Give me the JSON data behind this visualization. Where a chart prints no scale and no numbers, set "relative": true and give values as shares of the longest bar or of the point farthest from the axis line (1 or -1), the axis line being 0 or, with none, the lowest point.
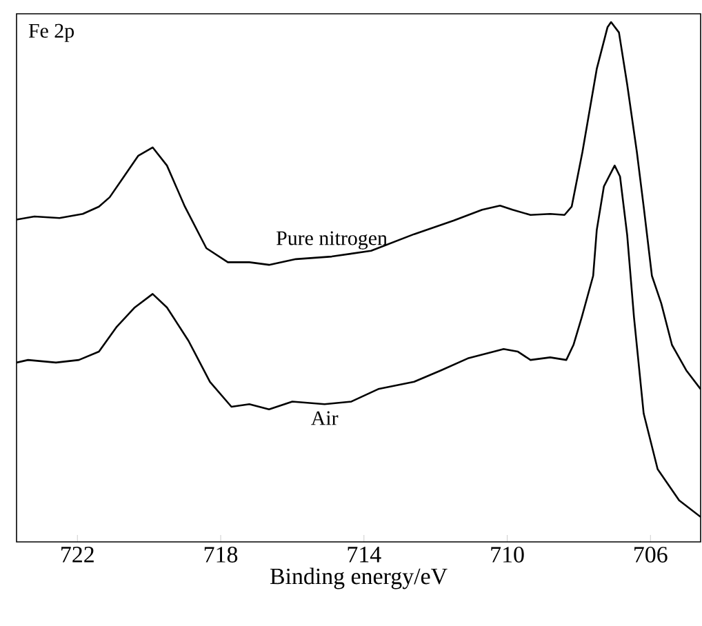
{
  "chart_data": {
    "type": "line",
    "relative": true,
    "xlabel": "Binding energy/eV",
    "annotations": [
      "Fe 2p"
    ],
    "xlim": [
      723.7,
      704.6
    ],
    "xticks": [
      722,
      718,
      714,
      710,
      706
    ],
    "legend": false,
    "grid": false,
    "marker": "none",
    "line_style": "solid",
    "series": [
      {
        "name": "Pure nitrogen",
        "color": "#000000",
        "x": [
          723.7,
          723.2,
          722.5,
          721.85,
          721.4,
          721.1,
          720.7,
          720.3,
          719.9,
          719.5,
          719.0,
          718.4,
          717.8,
          717.2,
          716.65,
          715.9,
          714.9,
          713.8,
          712.6,
          711.5,
          710.7,
          710.2,
          709.85,
          709.35,
          708.8,
          708.4,
          708.2,
          707.9,
          707.5,
          707.2,
          707.1,
          706.88,
          706.65,
          706.38,
          706.19,
          705.96,
          705.7,
          705.4,
          705.0,
          704.6
        ],
        "values": [
          0.62,
          0.626,
          0.623,
          0.631,
          0.645,
          0.663,
          0.703,
          0.743,
          0.759,
          0.724,
          0.645,
          0.565,
          0.538,
          0.538,
          0.533,
          0.544,
          0.549,
          0.56,
          0.592,
          0.618,
          0.639,
          0.647,
          0.639,
          0.629,
          0.631,
          0.629,
          0.645,
          0.75,
          0.91,
          0.99,
          1.0,
          0.98,
          0.88,
          0.75,
          0.645,
          0.512,
          0.459,
          0.379,
          0.33,
          0.294
        ]
      },
      {
        "name": "Air",
        "color": "#000000",
        "x": [
          723.7,
          723.38,
          722.6,
          721.96,
          721.4,
          720.9,
          720.4,
          719.9,
          719.5,
          718.9,
          718.3,
          717.7,
          717.2,
          716.65,
          716.0,
          715.1,
          714.35,
          713.6,
          712.6,
          711.85,
          711.1,
          710.1,
          709.7,
          709.35,
          708.8,
          708.35,
          708.15,
          707.92,
          707.6,
          707.5,
          707.3,
          707.0,
          706.85,
          706.65,
          706.46,
          706.19,
          705.8,
          705.2,
          704.6
        ],
        "values": [
          0.345,
          0.35,
          0.345,
          0.35,
          0.366,
          0.414,
          0.451,
          0.477,
          0.451,
          0.387,
          0.308,
          0.26,
          0.265,
          0.255,
          0.27,
          0.265,
          0.27,
          0.294,
          0.308,
          0.33,
          0.353,
          0.371,
          0.366,
          0.35,
          0.355,
          0.35,
          0.379,
          0.432,
          0.512,
          0.6,
          0.684,
          0.724,
          0.703,
          0.59,
          0.432,
          0.247,
          0.14,
          0.08,
          0.048
        ]
      }
    ]
  }
}
